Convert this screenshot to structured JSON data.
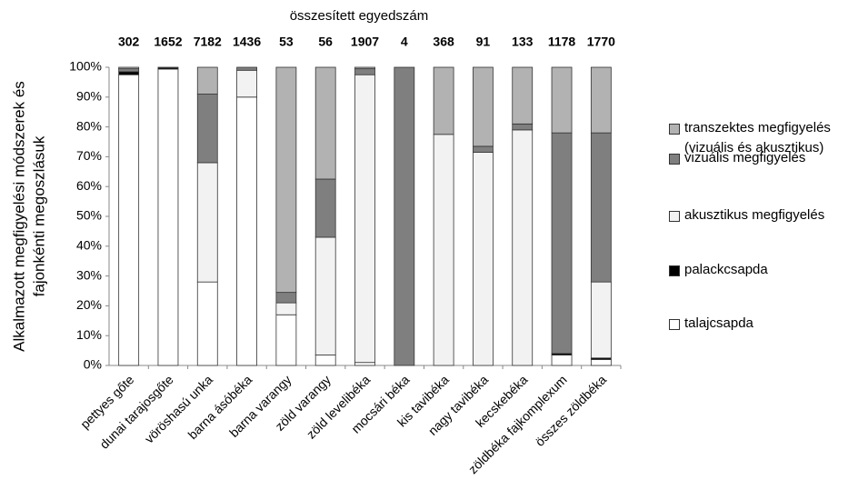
{
  "chart_data": {
    "type": "stacked_bar_100",
    "title": "összesített egyedszám",
    "ylabel": [
      "Alkalmazott megfigyelési módszerek és",
      "fajonkénti megoszlásuk"
    ],
    "categories": [
      "pettyes gőte",
      "dunai tarajosgőte",
      "vöröshasú unka",
      "barna ásóbéka",
      "barna varangy",
      "zöld varangy",
      "zöld levelibéka",
      "mocsári béka",
      "kis tavibéka",
      "nagy tavibéka",
      "kecskebéka",
      "zöldbéka fajkomplexum",
      "összes zöldbéka"
    ],
    "totals": [
      302,
      1652,
      7182,
      1436,
      53,
      56,
      1907,
      4,
      368,
      91,
      133,
      1178,
      1770
    ],
    "series": [
      {
        "name": "talajcsapda",
        "color": "#ffffff",
        "values": [
          97.5,
          99.4,
          28,
          90,
          17,
          3.5,
          1,
          0,
          0,
          0,
          0,
          3.5,
          2
        ]
      },
      {
        "name": "palackcsapda",
        "color": "#000000",
        "values": [
          1,
          0.4,
          0,
          0,
          0,
          0,
          0,
          0,
          0,
          0,
          0,
          0.5,
          0.5
        ]
      },
      {
        "name": "akusztikus megfigyelés",
        "color": "#f2f2f2",
        "values": [
          0,
          0,
          40,
          9,
          4,
          39.5,
          96.5,
          0,
          77.5,
          71.5,
          79,
          0,
          25.5
        ]
      },
      {
        "name": "vizuális megfigyelés",
        "color": "#7f7f7f",
        "values": [
          1,
          0.2,
          23,
          1,
          3.5,
          19.5,
          2,
          100,
          0,
          2,
          2,
          74,
          50
        ]
      },
      {
        "name": "transzektes megfigyelés (vizuális és akusztikus)",
        "color": "#b2b2b2",
        "values": [
          0.5,
          0,
          9,
          0,
          75.5,
          37.5,
          0.5,
          0,
          22.5,
          26.5,
          19,
          22,
          22
        ]
      }
    ],
    "ylim": [
      0,
      100
    ],
    "yticks": [
      {
        "value": 0,
        "label": "0%"
      },
      {
        "value": 10,
        "label": "10%"
      },
      {
        "value": 20,
        "label": "20%"
      },
      {
        "value": 30,
        "label": "30%"
      },
      {
        "value": 40,
        "label": "40%"
      },
      {
        "value": 50,
        "label": "50%"
      },
      {
        "value": 60,
        "label": "60%"
      },
      {
        "value": 70,
        "label": "70%"
      },
      {
        "value": 80,
        "label": "80%"
      },
      {
        "value": 90,
        "label": "90%"
      },
      {
        "value": 100,
        "label": "100%"
      }
    ],
    "legend": "right"
  }
}
